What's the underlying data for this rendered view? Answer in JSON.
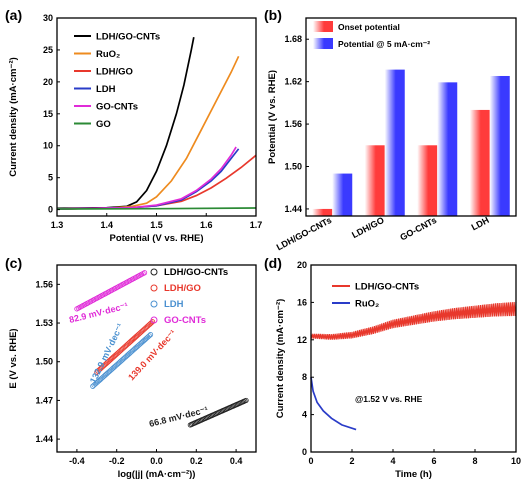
{
  "chart_data": [
    {
      "panel": "(a)",
      "type": "line",
      "xlabel": "Potential (V vs. RHE)",
      "ylabel": "Current density (mA·cm⁻²)",
      "xlim": [
        1.3,
        1.7
      ],
      "ylim": [
        -1,
        30
      ],
      "xticks": [
        1.3,
        1.4,
        1.5,
        1.6,
        1.7
      ],
      "yticks": [
        0,
        5,
        10,
        15,
        20,
        25,
        30
      ],
      "legend_position": "top-left",
      "series": [
        {
          "name": "LDH/GO-CNTs",
          "color": "#000000",
          "x": [
            1.3,
            1.4,
            1.44,
            1.46,
            1.48,
            1.5,
            1.52,
            1.54,
            1.555,
            1.57,
            1.575
          ],
          "y": [
            0.2,
            0.3,
            0.5,
            1.2,
            3.0,
            6.0,
            10.0,
            15.0,
            19.5,
            25.0,
            27.0
          ]
        },
        {
          "name": "RuO₂",
          "color": "#ee8b1f",
          "x": [
            1.3,
            1.4,
            1.45,
            1.48,
            1.5,
            1.53,
            1.56,
            1.59,
            1.62,
            1.65,
            1.665
          ],
          "y": [
            0.1,
            0.2,
            0.5,
            1.0,
            2.0,
            4.5,
            8.0,
            12.5,
            17.0,
            21.5,
            24.0
          ]
        },
        {
          "name": "LDH/GO",
          "color": "#e8382c",
          "x": [
            1.3,
            1.45,
            1.5,
            1.55,
            1.58,
            1.61,
            1.64,
            1.67,
            1.7
          ],
          "y": [
            0.1,
            0.3,
            0.6,
            1.3,
            2.2,
            3.4,
            4.9,
            6.6,
            8.5
          ]
        },
        {
          "name": "LDH",
          "color": "#2a3cc8",
          "x": [
            1.3,
            1.45,
            1.5,
            1.55,
            1.58,
            1.61,
            1.63,
            1.65,
            1.665
          ],
          "y": [
            0.1,
            0.3,
            0.6,
            1.5,
            2.8,
            4.5,
            6.0,
            8.0,
            9.5
          ]
        },
        {
          "name": "GO-CNTs",
          "color": "#e02bd8",
          "x": [
            1.3,
            1.45,
            1.5,
            1.55,
            1.58,
            1.61,
            1.63,
            1.65,
            1.66
          ],
          "y": [
            0.1,
            0.3,
            0.7,
            1.7,
            3.0,
            4.8,
            6.4,
            8.5,
            9.8
          ]
        },
        {
          "name": "GO",
          "color": "#2b8a35",
          "x": [
            1.3,
            1.5,
            1.7
          ],
          "y": [
            0.1,
            0.15,
            0.25
          ]
        }
      ]
    },
    {
      "panel": "(b)",
      "type": "bar",
      "ylabel": "Potential (V vs. RHE)",
      "ylim": [
        1.43,
        1.71
      ],
      "yticks": [
        1.44,
        1.5,
        1.56,
        1.62,
        1.68
      ],
      "categories": [
        "LDH/GO-CNTs",
        "LDH/GO",
        "GO-CNTs",
        "LDH"
      ],
      "legend_position": "top-left",
      "series": [
        {
          "name": "Onset potential",
          "color": "#ff3b3b",
          "values": [
            1.44,
            1.53,
            1.53,
            1.58
          ]
        },
        {
          "name": "Potential @ 5 mA·cm⁻²",
          "color": "#3a3aff",
          "values": [
            1.49,
            1.637,
            1.619,
            1.628
          ]
        }
      ]
    },
    {
      "panel": "(c)",
      "type": "scatter",
      "xlabel": "log(|j| (mA·cm⁻²))",
      "ylabel": "E (V vs. RHE)",
      "xlim": [
        -0.5,
        0.5
      ],
      "ylim": [
        1.43,
        1.575
      ],
      "xticks": [
        -0.4,
        -0.2,
        0.0,
        0.2,
        0.4
      ],
      "yticks": [
        1.44,
        1.47,
        1.5,
        1.53,
        1.56
      ],
      "legend_position": "top-right",
      "series": [
        {
          "name": "LDH/GO-CNTs",
          "color": "#222222",
          "x_range": [
            0.17,
            0.45
          ],
          "y_range": [
            1.451,
            1.47
          ],
          "tafel_label": "66.8 mV·dec⁻¹"
        },
        {
          "name": "LDH/GO",
          "color": "#e8382c",
          "x_range": [
            -0.3,
            -0.02
          ],
          "y_range": [
            1.492,
            1.531
          ],
          "tafel_label": "139.0 mV·dec⁻¹"
        },
        {
          "name": "LDH",
          "color": "#4a90d0",
          "x_range": [
            -0.32,
            -0.03
          ],
          "y_range": [
            1.481,
            1.521
          ],
          "tafel_label": "132.9 mV·dec⁻¹"
        },
        {
          "name": "GO-CNTs",
          "color": "#e02bd8",
          "x_range": [
            -0.4,
            -0.06
          ],
          "y_range": [
            1.541,
            1.569
          ],
          "tafel_label": "82.9 mV·dec⁻¹"
        }
      ]
    },
    {
      "panel": "(d)",
      "type": "line",
      "xlabel": "Time (h)",
      "ylabel": "Current density (mA·cm⁻²)",
      "xlim": [
        0,
        10
      ],
      "ylim": [
        0,
        20
      ],
      "xticks": [
        0,
        2,
        4,
        6,
        8,
        10
      ],
      "yticks": [
        0,
        4,
        8,
        12,
        16,
        20
      ],
      "annotation": "@1.52 V vs. RHE",
      "legend_position": "top-center",
      "series": [
        {
          "name": "LDH/GO-CNTs",
          "color": "#e8382c",
          "x": [
            0,
            1,
            2,
            3,
            4,
            5,
            6,
            7,
            8,
            9,
            10
          ],
          "y": [
            12.4,
            12.3,
            12.5,
            13.0,
            13.7,
            14.1,
            14.5,
            14.8,
            15.0,
            15.2,
            15.3
          ]
        },
        {
          "name": "RuO₂",
          "color": "#2a3cc8",
          "x": [
            0,
            0.1,
            0.3,
            0.6,
            1.0,
            1.5,
            2.2
          ],
          "y": [
            8.0,
            6.5,
            5.3,
            4.4,
            3.6,
            2.9,
            2.4
          ]
        }
      ]
    }
  ]
}
